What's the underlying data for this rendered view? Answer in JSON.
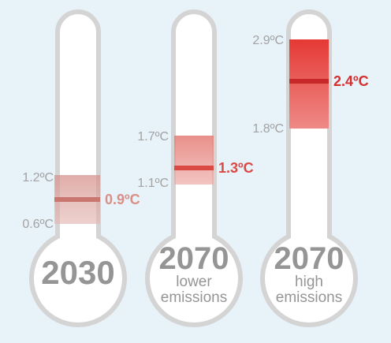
{
  "colors": {
    "background": "#e8f2f9",
    "outline": "#d4d4d4",
    "glass": "#ffffff",
    "text_grey": "#a3a3a3",
    "label_low": "#d98f86",
    "label_mid": "#d94a45",
    "label_high": "#d32f2f"
  },
  "thermometers": [
    {
      "year": "2030",
      "subtitle": "",
      "range_high": "1.2ºC",
      "range_low": "0.6ºC",
      "central": "0.9ºC",
      "range_c": [
        0.6,
        1.2
      ],
      "central_c": 0.9,
      "color": "#cf8a86"
    },
    {
      "year": "2070",
      "subtitle": "lower emissions",
      "subtitle_line1": "lower",
      "subtitle_line2": "emissions",
      "range_high": "1.7ºC",
      "range_low": "1.1ºC",
      "central": "1.3ºC",
      "range_c": [
        1.1,
        1.7
      ],
      "central_c": 1.3,
      "color": "#d9605c"
    },
    {
      "year": "2070",
      "subtitle": "high emissions",
      "subtitle_line1": "high",
      "subtitle_line2": "emissions",
      "range_high": "2.9ºC",
      "range_low": "1.8ºC",
      "central": "2.4ºC",
      "range_c": [
        1.8,
        2.9
      ],
      "central_c": 2.4,
      "color": "#e53935"
    }
  ]
}
